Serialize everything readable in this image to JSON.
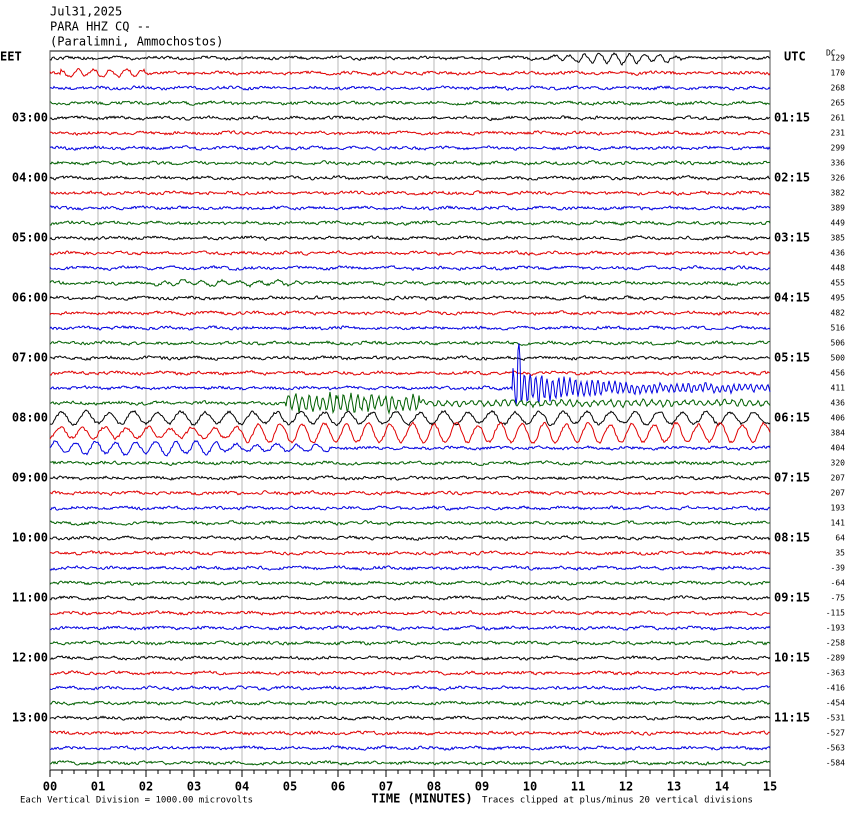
{
  "header": {
    "lines": [
      "Jul31,2025",
      "PARA HHZ CQ --",
      "(Paralimni, Ammochostos)"
    ]
  },
  "left_axis_label": "EET",
  "right_axis_label": "UTC",
  "dc_label": "DC",
  "left_labels": [
    "03:00",
    "04:00",
    "05:00",
    "06:00",
    "07:00",
    "08:00",
    "09:00",
    "10:00",
    "11:00",
    "12:00",
    "13:00"
  ],
  "right_labels": [
    "01:15",
    "02:15",
    "03:15",
    "04:15",
    "05:15",
    "06:15",
    "07:15",
    "08:15",
    "09:15",
    "10:15",
    "11:15"
  ],
  "dc_values": [
    "129",
    "170",
    "268",
    "265",
    "261",
    "231",
    "299",
    "336",
    "326",
    "382",
    "389",
    "449",
    "385",
    "436",
    "448",
    "455",
    "495",
    "482",
    "516",
    "506",
    "500",
    "456",
    "411",
    "436",
    "406",
    "384",
    "404",
    "320",
    "207",
    "207",
    "193",
    "141",
    "64",
    "35",
    "-39",
    "-64",
    "-75",
    "-115",
    "-193",
    "-258",
    "-289",
    "-363",
    "-416",
    "-454",
    "-531",
    "-527",
    "-563",
    "-584"
  ],
  "trace_colors": [
    "#000000",
    "#e00000",
    "#0000e0",
    "#006000"
  ],
  "x_ticks": [
    "00",
    "01",
    "02",
    "03",
    "04",
    "05",
    "06",
    "07",
    "08",
    "09",
    "10",
    "11",
    "12",
    "13",
    "14",
    "15"
  ],
  "footer": {
    "scale_note": "Each Vertical Division = 1000.00 microvolts",
    "x_axis_label": "TIME (MINUTES)",
    "clip_note": "Traces clipped at plus/minus 20 vertical divisions"
  }
}
